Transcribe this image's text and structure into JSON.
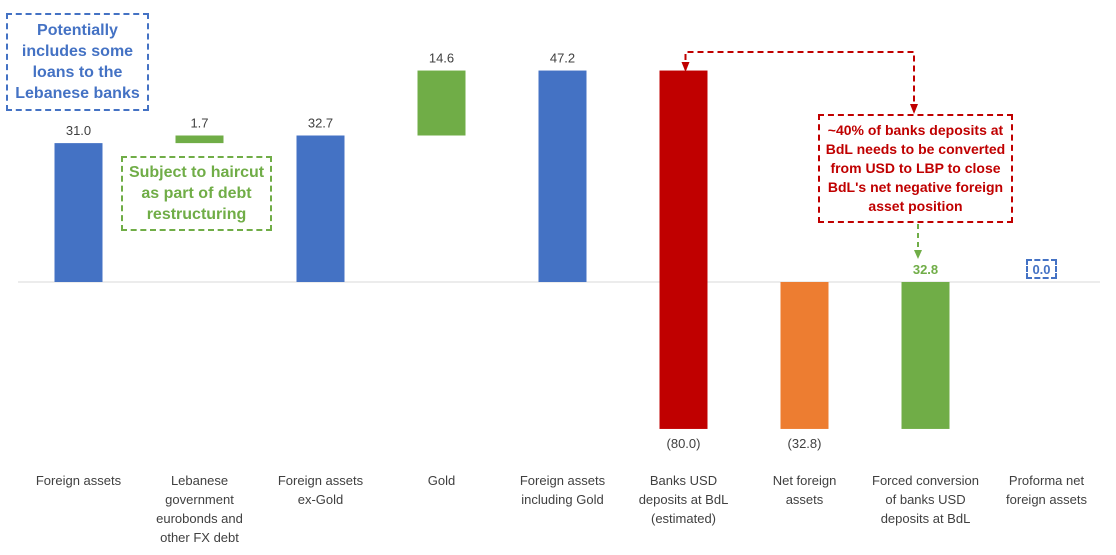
{
  "chart_data": {
    "type": "waterfall",
    "categories": [
      "Foreign assets",
      "Lebanese government eurobonds and other FX debt",
      "Foreign assets ex-Gold",
      "Gold",
      "Foreign assets including Gold",
      "Banks USD deposits at BdL (estimated)",
      "Net foreign assets",
      "Forced conversion of banks USD deposits at BdL",
      "Proforma net foreign assets"
    ],
    "category_lines": [
      [
        "Foreign assets"
      ],
      [
        "Lebanese",
        "government",
        "eurobonds and",
        "other FX debt"
      ],
      [
        "Foreign assets",
        "ex-Gold"
      ],
      [
        "Gold"
      ],
      [
        "Foreign assets",
        "including Gold"
      ],
      [
        "Banks USD",
        "deposits at BdL",
        "(estimated)"
      ],
      [
        "Net foreign",
        "assets"
      ],
      [
        "Forced conversion",
        "of banks USD",
        "deposits at BdL"
      ],
      [
        "Proforma net",
        "foreign assets"
      ]
    ],
    "bars": [
      {
        "start": 0,
        "end": 31.0,
        "label": "31.0",
        "color": "#4472c4"
      },
      {
        "start": 31.0,
        "end": 32.7,
        "label": "1.7",
        "color": "#70ad47"
      },
      {
        "start": 0,
        "end": 32.7,
        "label": "32.7",
        "color": "#4472c4"
      },
      {
        "start": 32.7,
        "end": 47.2,
        "label": "14.6",
        "color": "#70ad47"
      },
      {
        "start": 0,
        "end": 47.2,
        "label": "47.2",
        "color": "#4472c4"
      },
      {
        "start": 47.2,
        "end": -32.8,
        "label": "(80.0)",
        "color": "#c00000"
      },
      {
        "start": 0,
        "end": -32.8,
        "label": "(32.8)",
        "color": "#ed7d31"
      },
      {
        "start": -32.8,
        "end": 0,
        "label": "32.8",
        "color": "#70ad47",
        "label_color": "#70ad47",
        "label_bold": true
      },
      {
        "start": 0,
        "end": 0,
        "label": "0.0",
        "color": "#4472c4"
      }
    ],
    "ylim": [
      -35,
      50
    ]
  },
  "annotations": {
    "loans": [
      "Potentially",
      "includes some",
      "loans to the",
      "Lebanese banks"
    ],
    "haircut": [
      "Subject to haircut",
      "as part of debt",
      "restructuring"
    ],
    "banks": [
      "~40% of banks deposits at",
      "BdL needs to be converted",
      "from USD to LBP to close",
      "BdL's net negative foreign",
      "asset position"
    ]
  },
  "colors": {
    "blue": "#4472c4",
    "green": "#70ad47",
    "red": "#c00000",
    "orange": "#ed7d31"
  }
}
